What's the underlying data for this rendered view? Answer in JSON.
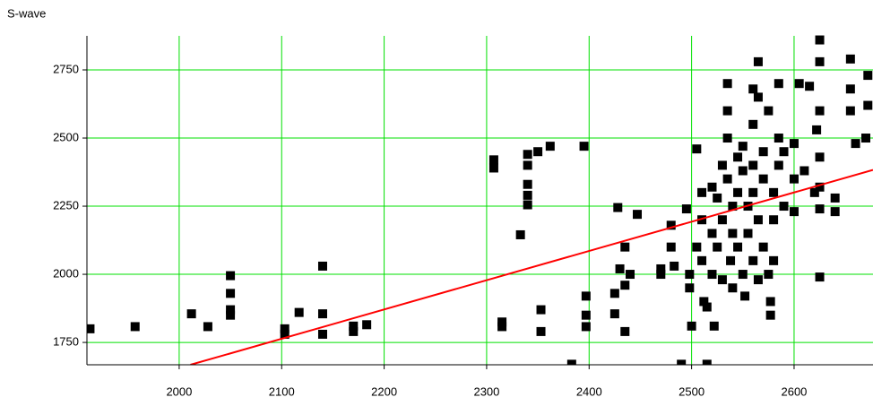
{
  "chart_data": {
    "type": "scatter",
    "ylabel": "S-wave",
    "xlim": [
      1910,
      2677
    ],
    "ylim": [
      1668,
      2875
    ],
    "xticks": [
      2000,
      2100,
      2200,
      2300,
      2400,
      2500,
      2600
    ],
    "yticks": [
      1750,
      2000,
      2250,
      2500,
      2750
    ],
    "grid": true,
    "grid_color": "#00e000",
    "series": [
      {
        "color": "#000000",
        "x": [
          1913,
          1957,
          2012,
          2028,
          2050,
          2050,
          2050,
          2050,
          2103,
          2103,
          2117,
          2140,
          2140,
          2140,
          2170,
          2170,
          2183,
          2307,
          2307,
          2315,
          2315,
          2333,
          2340,
          2340,
          2340,
          2340,
          2340,
          2350,
          2353,
          2353,
          2362,
          2383,
          2395,
          2397,
          2397,
          2397,
          2425,
          2425,
          2428,
          2430,
          2435,
          2435,
          2435,
          2440,
          2447,
          2470,
          2470,
          2480,
          2480,
          2483,
          2490,
          2495,
          2498,
          2498,
          2500,
          2505,
          2505,
          2510,
          2510,
          2510,
          2512,
          2515,
          2515,
          2520,
          2520,
          2520,
          2522,
          2525,
          2525,
          2530,
          2530,
          2530,
          2535,
          2535,
          2535,
          2535,
          2538,
          2540,
          2540,
          2540,
          2545,
          2545,
          2545,
          2550,
          2550,
          2550,
          2552,
          2555,
          2555,
          2560,
          2560,
          2560,
          2560,
          2560,
          2565,
          2565,
          2565,
          2565,
          2570,
          2570,
          2570,
          2575,
          2575,
          2577,
          2577,
          2580,
          2580,
          2580,
          2585,
          2585,
          2585,
          2590,
          2590,
          2600,
          2600,
          2600,
          2605,
          2610,
          2615,
          2620,
          2622,
          2625,
          2625,
          2625,
          2625,
          2625,
          2625,
          2625,
          2640,
          2640,
          2655,
          2655,
          2655,
          2660,
          2670,
          2672,
          2672
        ],
        "y": [
          1800,
          1808,
          1855,
          1808,
          1995,
          1930,
          1870,
          1850,
          1800,
          1780,
          1860,
          2030,
          1855,
          1780,
          1810,
          1790,
          1815,
          2420,
          2390,
          1825,
          1808,
          2145,
          2440,
          2400,
          2330,
          2290,
          2255,
          2450,
          1870,
          1790,
          2470,
          1670,
          2470,
          1920,
          1850,
          1808,
          1930,
          1855,
          2245,
          2020,
          2100,
          1960,
          1790,
          2000,
          2220,
          2020,
          2000,
          2180,
          2100,
          2030,
          1670,
          2240,
          2000,
          1950,
          1810,
          2460,
          2100,
          2300,
          2200,
          2050,
          1900,
          1880,
          1670,
          2320,
          2150,
          2000,
          1810,
          2280,
          2100,
          2400,
          2200,
          1980,
          2700,
          2600,
          2500,
          2350,
          2050,
          2250,
          2150,
          1950,
          2430,
          2300,
          2100,
          2470,
          2380,
          2000,
          1920,
          2250,
          2150,
          2680,
          2550,
          2400,
          2300,
          2050,
          2780,
          2650,
          2200,
          1980,
          2450,
          2350,
          2100,
          2600,
          2000,
          1900,
          1850,
          2300,
          2200,
          2050,
          2700,
          2500,
          2400,
          2450,
          2250,
          2480,
          2350,
          2230,
          2700,
          2380,
          2690,
          2300,
          2530,
          2860,
          2780,
          2600,
          2430,
          2320,
          2240,
          1990,
          2280,
          2230,
          2790,
          2680,
          2600,
          2480,
          2500,
          2730,
          2620
        ]
      }
    ],
    "fit_line": {
      "color": "#ff0000",
      "x": [
        2011,
        2677
      ],
      "y": [
        1668,
        2383
      ]
    }
  }
}
